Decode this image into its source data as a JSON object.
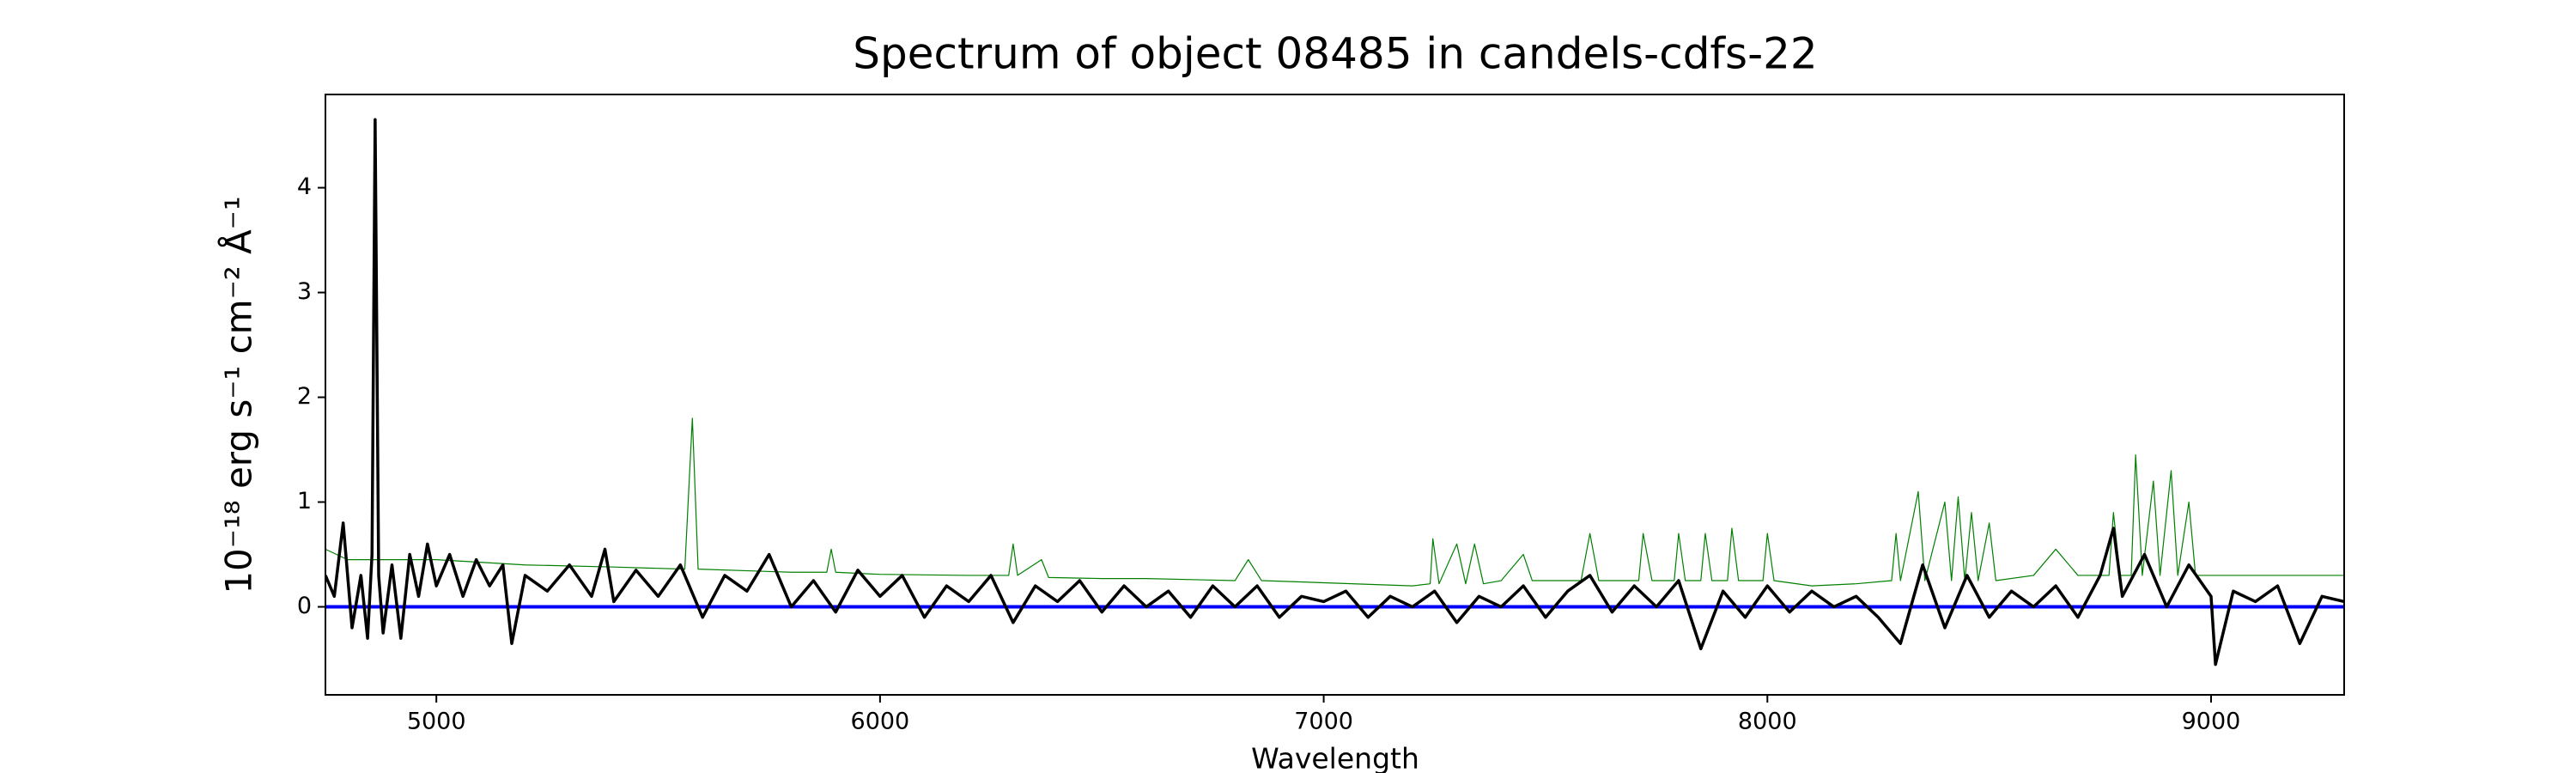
{
  "chart_data": {
    "type": "line",
    "title": "Spectrum of object 08485 in candels-cdfs-22",
    "x_label": "Wavelength",
    "y_label": "10⁻¹⁸ erg s⁻¹ cm⁻² Å⁻¹",
    "xlim": [
      4750,
      9300
    ],
    "ylim": [
      -0.84,
      4.89
    ],
    "xticks": [
      5000,
      6000,
      7000,
      8000,
      9000
    ],
    "yticks": [
      0,
      1,
      2,
      3,
      4
    ],
    "series": [
      {
        "color": "#008000",
        "width": 1.2,
        "x": [
          4750,
          4800,
          4900,
          5000,
          5200,
          5400,
          5560,
          5577,
          5590,
          5800,
          5880,
          5890,
          5900,
          6000,
          6200,
          6290,
          6300,
          6310,
          6364,
          6380,
          6500,
          6600,
          6800,
          6830,
          6860,
          7000,
          7200,
          7240,
          7246,
          7260,
          7300,
          7320,
          7340,
          7360,
          7400,
          7450,
          7470,
          7580,
          7600,
          7620,
          7710,
          7720,
          7740,
          7790,
          7800,
          7815,
          7850,
          7860,
          7875,
          7910,
          7920,
          7935,
          7990,
          8000,
          8015,
          8100,
          8200,
          8280,
          8290,
          8300,
          8340,
          8355,
          8400,
          8415,
          8430,
          8445,
          8460,
          8475,
          8500,
          8515,
          8600,
          8650,
          8700,
          8770,
          8780,
          8795,
          8820,
          8830,
          8845,
          8870,
          8885,
          8910,
          8925,
          8950,
          8965,
          9000,
          9100,
          9200,
          9300
        ],
        "values": [
          0.55,
          0.45,
          0.45,
          0.45,
          0.4,
          0.38,
          0.36,
          1.8,
          0.36,
          0.33,
          0.33,
          0.55,
          0.33,
          0.31,
          0.3,
          0.3,
          0.6,
          0.3,
          0.45,
          0.28,
          0.27,
          0.27,
          0.25,
          0.45,
          0.25,
          0.23,
          0.2,
          0.22,
          0.65,
          0.22,
          0.6,
          0.22,
          0.6,
          0.22,
          0.25,
          0.5,
          0.25,
          0.25,
          0.7,
          0.25,
          0.25,
          0.7,
          0.25,
          0.25,
          0.7,
          0.25,
          0.25,
          0.7,
          0.25,
          0.25,
          0.75,
          0.25,
          0.25,
          0.7,
          0.25,
          0.2,
          0.22,
          0.25,
          0.7,
          0.25,
          1.1,
          0.25,
          1.0,
          0.25,
          1.05,
          0.25,
          0.9,
          0.25,
          0.8,
          0.25,
          0.3,
          0.55,
          0.3,
          0.3,
          0.9,
          0.3,
          0.3,
          1.45,
          0.3,
          1.2,
          0.3,
          1.3,
          0.3,
          1.0,
          0.3,
          0.3,
          0.3,
          0.3,
          0.3
        ]
      },
      {
        "color": "#0000ff",
        "width": 4,
        "x": [
          4750,
          9300
        ],
        "values": [
          0,
          0
        ]
      },
      {
        "color": "#000000",
        "width": 3.5,
        "x": [
          4750,
          4770,
          4790,
          4810,
          4830,
          4845,
          4855,
          4862,
          4870,
          4880,
          4900,
          4920,
          4940,
          4960,
          4980,
          5000,
          5030,
          5060,
          5090,
          5120,
          5150,
          5170,
          5200,
          5250,
          5300,
          5350,
          5380,
          5400,
          5450,
          5500,
          5550,
          5600,
          5650,
          5700,
          5750,
          5800,
          5850,
          5900,
          5950,
          6000,
          6050,
          6100,
          6150,
          6200,
          6250,
          6300,
          6350,
          6400,
          6450,
          6500,
          6550,
          6600,
          6650,
          6700,
          6750,
          6800,
          6850,
          6900,
          6950,
          7000,
          7050,
          7100,
          7150,
          7200,
          7250,
          7300,
          7350,
          7400,
          7450,
          7500,
          7550,
          7600,
          7650,
          7700,
          7750,
          7800,
          7850,
          7900,
          7950,
          8000,
          8050,
          8100,
          8150,
          8200,
          8250,
          8300,
          8350,
          8400,
          8450,
          8500,
          8550,
          8600,
          8650,
          8700,
          8750,
          8780,
          8800,
          8850,
          8900,
          8950,
          9000,
          9010,
          9050,
          9100,
          9150,
          9200,
          9250,
          9300
        ],
        "values": [
          0.3,
          0.1,
          0.8,
          -0.2,
          0.3,
          -0.3,
          0.5,
          4.65,
          0.3,
          -0.25,
          0.4,
          -0.3,
          0.5,
          0.1,
          0.6,
          0.2,
          0.5,
          0.1,
          0.45,
          0.2,
          0.4,
          -0.35,
          0.3,
          0.15,
          0.4,
          0.1,
          0.55,
          0.05,
          0.35,
          0.1,
          0.4,
          -0.1,
          0.3,
          0.15,
          0.5,
          0.0,
          0.25,
          -0.05,
          0.35,
          0.1,
          0.3,
          -0.1,
          0.2,
          0.05,
          0.3,
          -0.15,
          0.2,
          0.05,
          0.25,
          -0.05,
          0.2,
          0.0,
          0.15,
          -0.1,
          0.2,
          0.0,
          0.2,
          -0.1,
          0.1,
          0.05,
          0.15,
          -0.1,
          0.1,
          0.0,
          0.15,
          -0.15,
          0.1,
          0.0,
          0.2,
          -0.1,
          0.15,
          0.3,
          -0.05,
          0.2,
          0.0,
          0.25,
          -0.4,
          0.15,
          -0.1,
          0.2,
          -0.05,
          0.15,
          0.0,
          0.1,
          -0.1,
          -0.35,
          0.4,
          -0.2,
          0.3,
          -0.1,
          0.15,
          0.0,
          0.2,
          -0.1,
          0.3,
          0.75,
          0.1,
          0.5,
          0.0,
          0.4,
          0.1,
          -0.55,
          0.15,
          0.05,
          0.2,
          -0.35,
          0.1,
          0.05
        ]
      }
    ]
  }
}
